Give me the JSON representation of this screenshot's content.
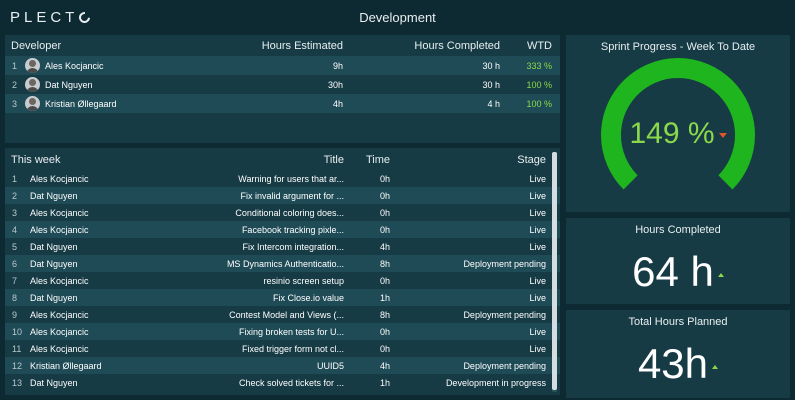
{
  "app": {
    "brand": "PLECT",
    "title": "Development"
  },
  "developers": {
    "columns": [
      "Developer",
      "Hours Estimated",
      "Hours Completed",
      "WTD"
    ],
    "rows": [
      {
        "rank": "1",
        "name": "Ales Kocjancic",
        "estimated": "9h",
        "completed": "30 h",
        "wtd": "333 %"
      },
      {
        "rank": "2",
        "name": "Dat Nguyen",
        "estimated": "30h",
        "completed": "30 h",
        "wtd": "100 %"
      },
      {
        "rank": "3",
        "name": "Kristian Øllegaard",
        "estimated": "4h",
        "completed": "4 h",
        "wtd": "100 %"
      }
    ]
  },
  "weekly": {
    "columns": [
      "This week",
      "Title",
      "Time",
      "Stage"
    ],
    "rows": [
      {
        "rank": "1",
        "name": "Ales Kocjancic",
        "title": "Warning for users that ar...",
        "time": "0h",
        "stage": "Live"
      },
      {
        "rank": "2",
        "name": "Dat Nguyen",
        "title": "Fix invalid argument for ...",
        "time": "0h",
        "stage": "Live"
      },
      {
        "rank": "3",
        "name": "Ales Kocjancic",
        "title": "Conditional coloring does...",
        "time": "0h",
        "stage": "Live"
      },
      {
        "rank": "4",
        "name": "Ales Kocjancic",
        "title": "Facebook tracking pixle...",
        "time": "0h",
        "stage": "Live"
      },
      {
        "rank": "5",
        "name": "Dat Nguyen",
        "title": "Fix Intercom integration...",
        "time": "4h",
        "stage": "Live"
      },
      {
        "rank": "6",
        "name": "Dat Nguyen",
        "title": "MS Dynamics Authenticatio...",
        "time": "8h",
        "stage": "Deployment pending"
      },
      {
        "rank": "7",
        "name": "Ales Kocjancic",
        "title": "resinio screen setup",
        "time": "0h",
        "stage": "Live"
      },
      {
        "rank": "8",
        "name": "Dat Nguyen",
        "title": "Fix Close.io value",
        "time": "1h",
        "stage": "Live"
      },
      {
        "rank": "9",
        "name": "Ales Kocjancic",
        "title": "Contest Model and Views (...",
        "time": "8h",
        "stage": "Deployment pending"
      },
      {
        "rank": "10",
        "name": "Ales Kocjancic",
        "title": "Fixing broken tests for U...",
        "time": "0h",
        "stage": "Live"
      },
      {
        "rank": "11",
        "name": "Ales Kocjancic",
        "title": "Fixed trigger form not cl...",
        "time": "0h",
        "stage": "Live"
      },
      {
        "rank": "12",
        "name": "Kristian Øllegaard",
        "title": "UUID5",
        "time": "4h",
        "stage": "Deployment pending"
      },
      {
        "rank": "13",
        "name": "Dat Nguyen",
        "title": "Check solved tickets for ...",
        "time": "1h",
        "stage": "Development in progress"
      }
    ]
  },
  "sprint": {
    "title": "Sprint Progress - Week To Date",
    "value": "149 %",
    "fraction": 1.0,
    "trend": "down",
    "gauge_color": "#1fb51f",
    "value_color": "#8bd84a"
  },
  "hours_completed": {
    "title": "Hours Completed",
    "value": "64 h",
    "trend": "up"
  },
  "hours_planned": {
    "title": "Total Hours Planned",
    "value": "43h",
    "trend": "up"
  },
  "icons": {
    "avatar": "user-avatar-icon",
    "trend_up": "arrow-up-icon",
    "trend_down": "arrow-down-icon"
  }
}
